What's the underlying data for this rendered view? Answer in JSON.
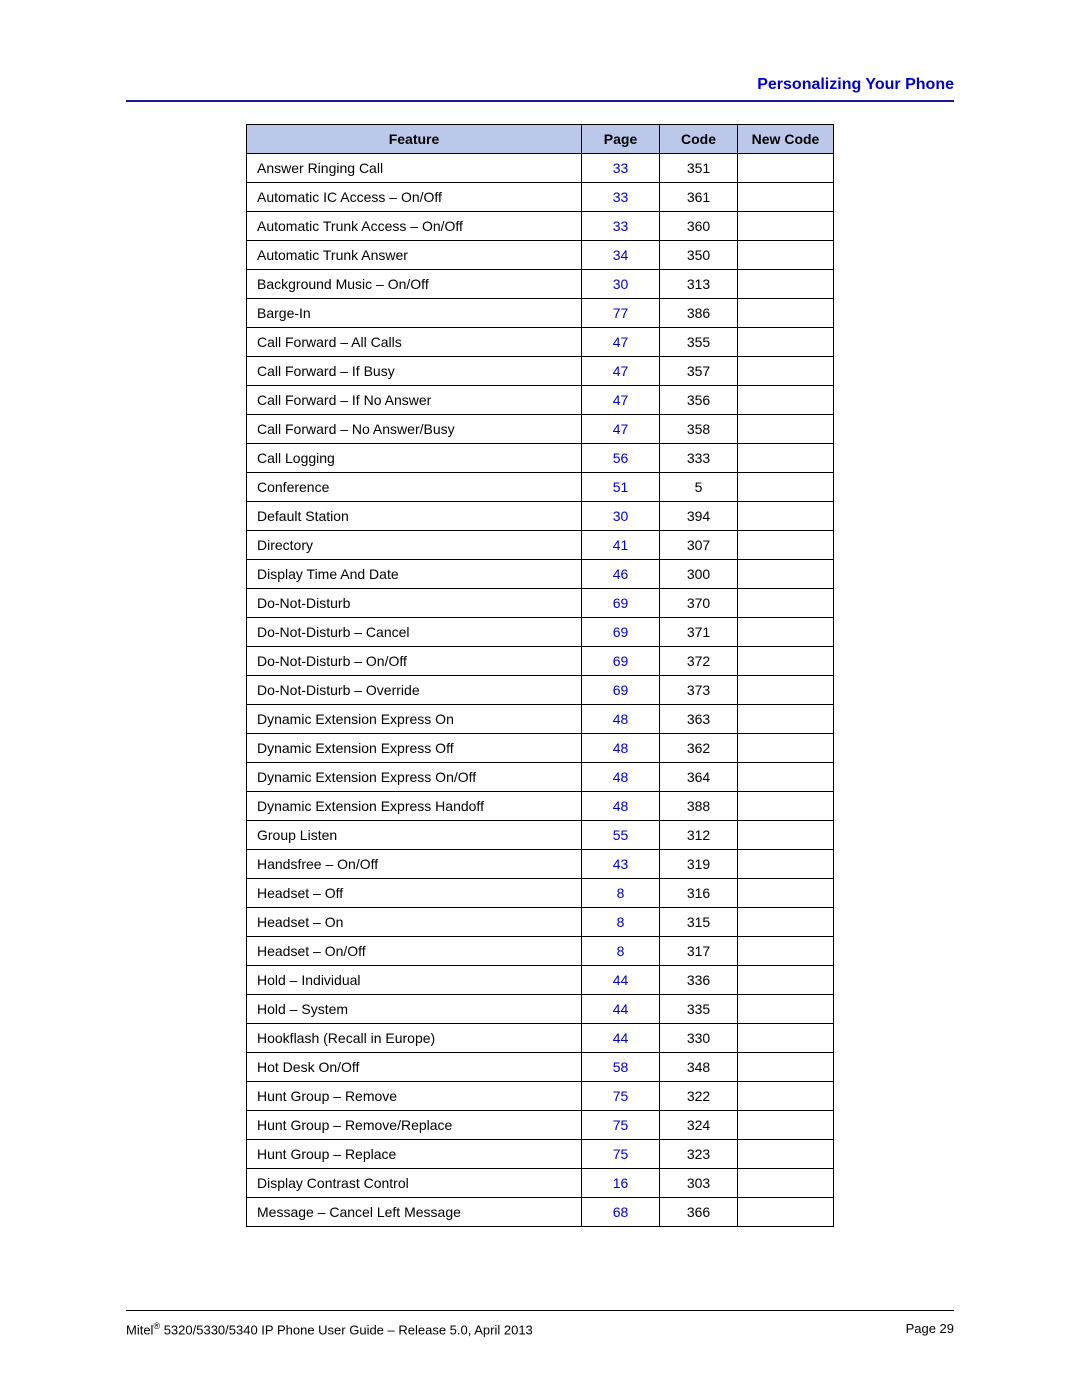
{
  "header": {
    "section_title": "Personalizing Your Phone",
    "title_color": "#0000cc",
    "rule_color": "#1a1a99"
  },
  "table": {
    "header_bg": "#bbc8ea",
    "link_color": "#0000cc",
    "columns": [
      "Feature",
      "Page",
      "Code",
      "New Code"
    ],
    "rows": [
      {
        "feature": "Answer Ringing Call",
        "page": "33",
        "code": "351",
        "new_code": ""
      },
      {
        "feature": "Automatic IC Access – On/Off",
        "page": "33",
        "code": "361",
        "new_code": ""
      },
      {
        "feature": "Automatic Trunk Access – On/Off",
        "page": "33",
        "code": "360",
        "new_code": ""
      },
      {
        "feature": "Automatic Trunk Answer",
        "page": "34",
        "code": "350",
        "new_code": ""
      },
      {
        "feature": "Background Music – On/Off",
        "page": "30",
        "code": "313",
        "new_code": ""
      },
      {
        "feature": "Barge-In",
        "page": "77",
        "code": "386",
        "new_code": ""
      },
      {
        "feature": "Call Forward – All Calls",
        "page": "47",
        "code": "355",
        "new_code": ""
      },
      {
        "feature": "Call Forward – If Busy",
        "page": "47",
        "code": "357",
        "new_code": ""
      },
      {
        "feature": "Call Forward – If No Answer",
        "page": "47",
        "code": "356",
        "new_code": ""
      },
      {
        "feature": "Call Forward – No Answer/Busy",
        "page": "47",
        "code": "358",
        "new_code": ""
      },
      {
        "feature": "Call Logging",
        "page": "56",
        "code": "333",
        "new_code": ""
      },
      {
        "feature": "Conference",
        "page": "51",
        "code": "5",
        "new_code": ""
      },
      {
        "feature": "Default Station",
        "page": "30",
        "code": "394",
        "new_code": ""
      },
      {
        "feature": "Directory",
        "page": "41",
        "code": "307",
        "new_code": ""
      },
      {
        "feature": "Display Time And Date",
        "page": "46",
        "code": "300",
        "new_code": ""
      },
      {
        "feature": "Do-Not-Disturb",
        "page": "69",
        "code": "370",
        "new_code": ""
      },
      {
        "feature": "Do-Not-Disturb – Cancel",
        "page": "69",
        "code": "371",
        "new_code": ""
      },
      {
        "feature": "Do-Not-Disturb – On/Off",
        "page": "69",
        "code": "372",
        "new_code": ""
      },
      {
        "feature": "Do-Not-Disturb – Override",
        "page": "69",
        "code": "373",
        "new_code": ""
      },
      {
        "feature": "Dynamic Extension Express On",
        "page": "48",
        "code": "363",
        "new_code": ""
      },
      {
        "feature": "Dynamic Extension Express Off",
        "page": "48",
        "code": "362",
        "new_code": ""
      },
      {
        "feature": "Dynamic Extension Express On/Off",
        "page": "48",
        "code": "364",
        "new_code": ""
      },
      {
        "feature": "Dynamic Extension Express Handoff",
        "page": "48",
        "code": "388",
        "new_code": ""
      },
      {
        "feature": "Group Listen",
        "page": "55",
        "code": "312",
        "new_code": ""
      },
      {
        "feature": "Handsfree – On/Off",
        "page": "43",
        "code": "319",
        "new_code": ""
      },
      {
        "feature": "Headset – Off",
        "page": "8",
        "code": "316",
        "new_code": ""
      },
      {
        "feature": "Headset – On",
        "page": "8",
        "code": "315",
        "new_code": ""
      },
      {
        "feature": "Headset – On/Off",
        "page": "8",
        "code": "317",
        "new_code": ""
      },
      {
        "feature": "Hold – Individual",
        "page": "44",
        "code": "336",
        "new_code": ""
      },
      {
        "feature": "Hold – System",
        "page": "44",
        "code": "335",
        "new_code": ""
      },
      {
        "feature": "Hookflash (Recall in Europe)",
        "page": "44",
        "code": "330",
        "new_code": ""
      },
      {
        "feature": "Hot Desk On/Off",
        "page": "58",
        "code": "348",
        "new_code": ""
      },
      {
        "feature": "Hunt Group – Remove",
        "page": "75",
        "code": "322",
        "new_code": ""
      },
      {
        "feature": "Hunt Group – Remove/Replace",
        "page": "75",
        "code": "324",
        "new_code": ""
      },
      {
        "feature": "Hunt Group – Replace",
        "page": "75",
        "code": "323",
        "new_code": ""
      },
      {
        "feature": "Display Contrast Control",
        "page": "16",
        "code": "303",
        "new_code": ""
      },
      {
        "feature": "Message – Cancel Left Message",
        "page": "68",
        "code": "366",
        "new_code": ""
      }
    ]
  },
  "footer": {
    "left_prefix": "Mitel",
    "left_sup": "®",
    "left_rest": " 5320/5330/5340 IP Phone User Guide – Release 5.0, April 2013",
    "right": "Page 29"
  }
}
